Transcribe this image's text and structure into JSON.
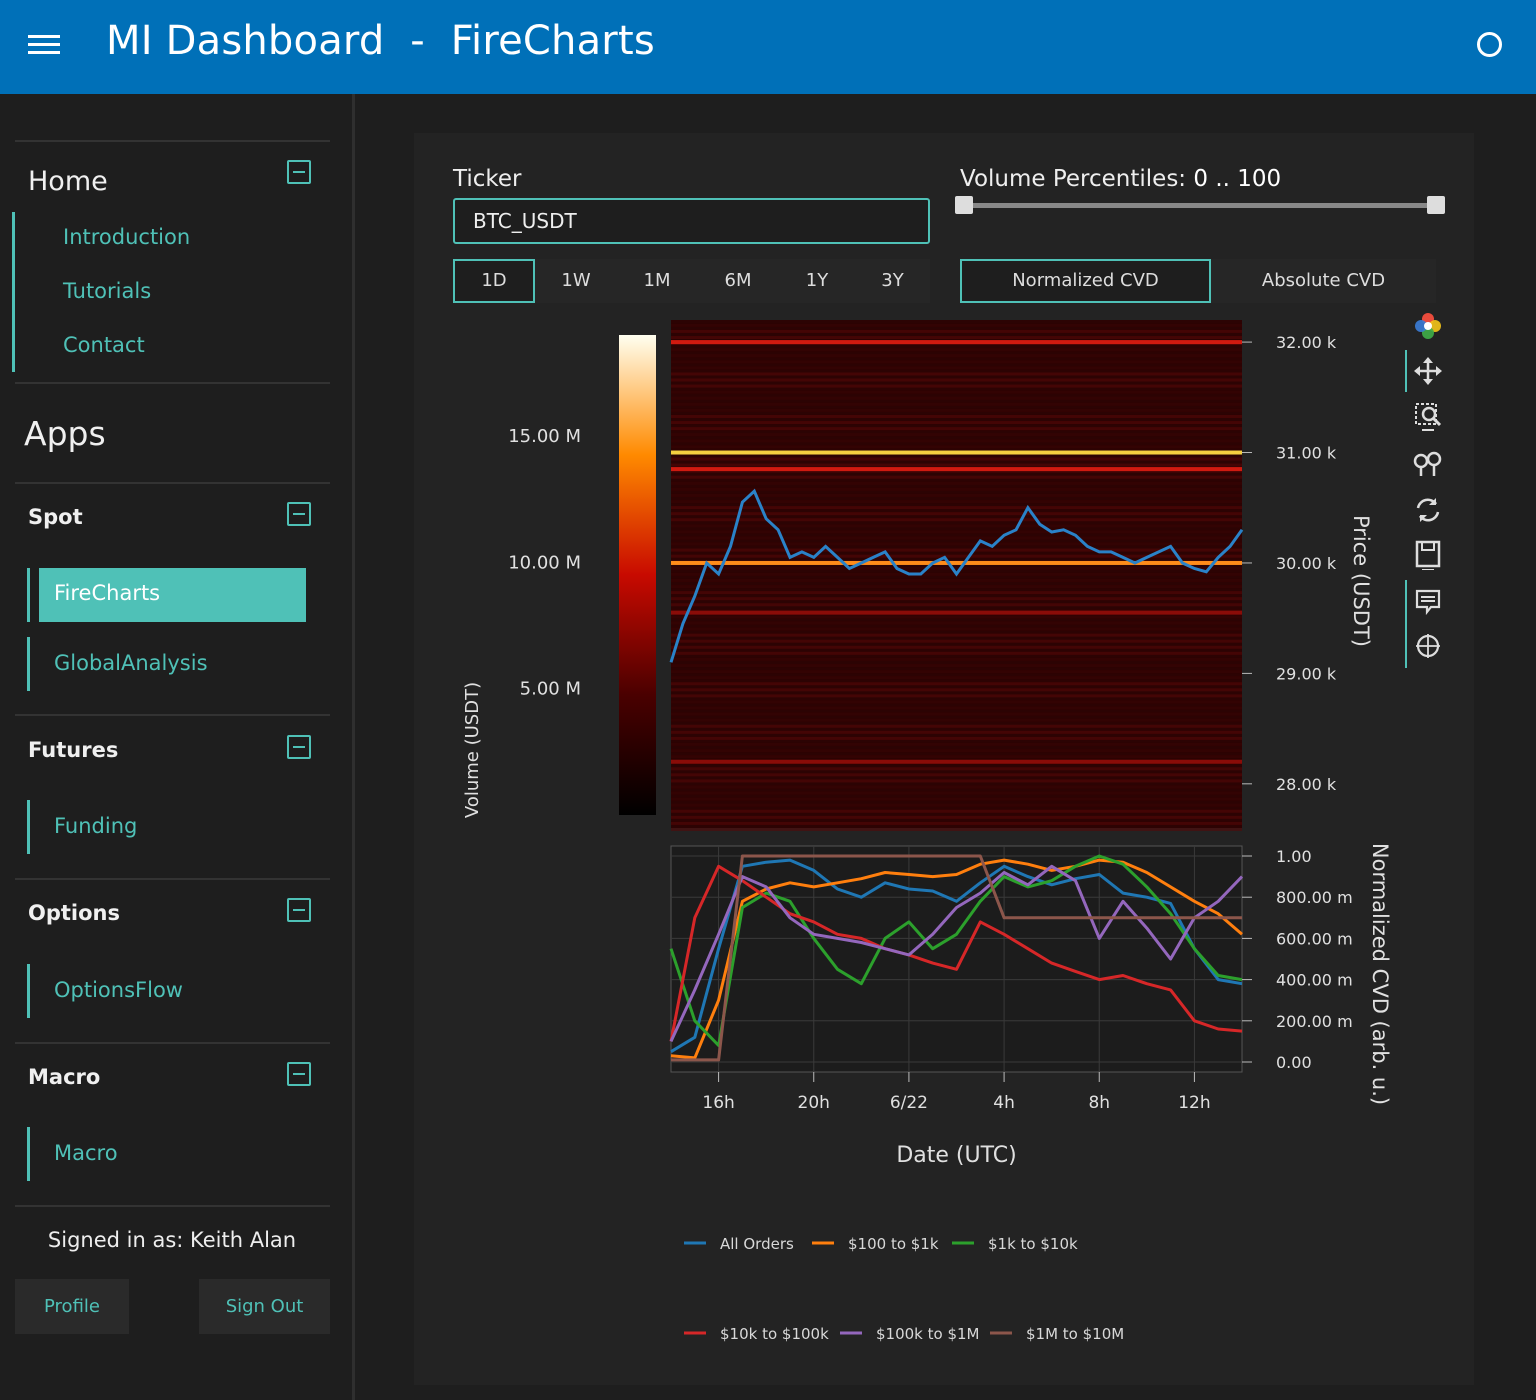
{
  "header": {
    "title": "MI Dashboard  -  FireCharts"
  },
  "sidebar": {
    "home": {
      "title": "Home",
      "items": [
        "Introduction",
        "Tutorials",
        "Contact"
      ]
    },
    "apps_title": "Apps",
    "sections": [
      {
        "title": "Spot",
        "items": [
          "FireCharts",
          "GlobalAnalysis"
        ],
        "active": "FireCharts"
      },
      {
        "title": "Futures",
        "items": [
          "Funding"
        ]
      },
      {
        "title": "Options",
        "items": [
          "OptionsFlow"
        ]
      },
      {
        "title": "Macro",
        "items": [
          "Macro"
        ]
      }
    ],
    "signed_in": "Signed in as: Keith Alan",
    "profile_label": "Profile",
    "signout_label": "Sign Out"
  },
  "controls": {
    "ticker_label": "Ticker",
    "ticker_value": "BTC_USDT",
    "volume_percentiles_label": "Volume Percentiles:",
    "volume_percentiles_value": "0 .. 100",
    "volume_percentiles_range": [
      0,
      100
    ],
    "timeframes": [
      "1D",
      "1W",
      "1M",
      "6M",
      "1Y",
      "3Y"
    ],
    "timeframe_active": "1D",
    "cvd_modes": [
      "Normalized CVD",
      "Absolute CVD"
    ],
    "cvd_mode_active": "Normalized CVD"
  },
  "modebar": {
    "icons": [
      "plotly-logo-icon",
      "pan-icon",
      "zoom-select-icon",
      "spike-lines-icon",
      "reset-axes-icon",
      "save-image-icon",
      "hover-compare-icon",
      "crosshair-icon"
    ]
  },
  "colors": {
    "accent": "#4fc1b7",
    "header": "#0070b8"
  },
  "chart_data": [
    {
      "type": "heatmap",
      "title": "",
      "ylabel": "Price (USDT)",
      "yticks": [
        "28.00 k",
        "29.00 k",
        "30.00 k",
        "31.00 k",
        "32.00 k"
      ],
      "ylim": [
        27600,
        32200
      ],
      "colorbar": {
        "label": "Volume (USDT)",
        "ticks": [
          "5.00 M",
          "10.00 M",
          "15.00 M"
        ],
        "range": [
          0,
          19000000
        ]
      },
      "heat_bands": [
        {
          "price": 31000,
          "volume": 15000000
        },
        {
          "price": 30000,
          "volume": 10000000
        },
        {
          "price": 32000,
          "volume": 6000000
        },
        {
          "price": 30850,
          "volume": 6500000
        },
        {
          "price": 29550,
          "volume": 4000000
        },
        {
          "price": 28200,
          "volume": 3500000
        }
      ],
      "price_series": {
        "x_hours": [
          0,
          0.5,
          1,
          1.5,
          2,
          2.5,
          3,
          3.5,
          4,
          4.5,
          5,
          5.5,
          6,
          6.5,
          7,
          7.5,
          8,
          8.5,
          9,
          9.5,
          10,
          10.5,
          11,
          11.5,
          12,
          12.5,
          13,
          13.5,
          14,
          14.5,
          15,
          15.5,
          16,
          16.5,
          17,
          17.5,
          18,
          18.5,
          19,
          19.5,
          20,
          20.5,
          21,
          21.5,
          22,
          22.5,
          23,
          23.5,
          24
        ],
        "y": [
          29100,
          29450,
          29700,
          30000,
          29900,
          30150,
          30550,
          30650,
          30400,
          30300,
          30050,
          30100,
          30050,
          30150,
          30050,
          29950,
          30000,
          30050,
          30100,
          29950,
          29900,
          29900,
          30000,
          30050,
          29900,
          30050,
          30200,
          30150,
          30250,
          30300,
          30500,
          30350,
          30280,
          30300,
          30250,
          30150,
          30100,
          30100,
          30050,
          30000,
          30050,
          30100,
          30150,
          30000,
          29950,
          29920,
          30050,
          30150,
          30300
        ]
      }
    },
    {
      "type": "line",
      "title": "",
      "xlabel": "Date (UTC)",
      "ylabel": "Normalized CVD (arb. u.)",
      "xticks": [
        "16h",
        "20h",
        "6/22",
        "4h",
        "8h",
        "12h"
      ],
      "yticks": [
        "0.00",
        "200.00 m",
        "400.00 m",
        "600.00 m",
        "800.00 m",
        "1.00"
      ],
      "ylim": [
        0,
        1
      ],
      "x_hours": [
        0,
        1,
        2,
        3,
        4,
        5,
        6,
        7,
        8,
        9,
        10,
        11,
        12,
        13,
        14,
        15,
        16,
        17,
        18,
        19,
        20,
        21,
        22,
        23,
        24
      ],
      "series": [
        {
          "name": "All Orders",
          "color": "#1f77b4",
          "values": [
            0.05,
            0.12,
            0.55,
            0.95,
            0.97,
            0.98,
            0.93,
            0.84,
            0.8,
            0.87,
            0.84,
            0.83,
            0.78,
            0.87,
            0.95,
            0.9,
            0.86,
            0.89,
            0.91,
            0.82,
            0.8,
            0.77,
            0.55,
            0.4,
            0.38
          ]
        },
        {
          "name": "$100 to $1k",
          "color": "#ff7f0e",
          "values": [
            0.03,
            0.02,
            0.3,
            0.78,
            0.84,
            0.87,
            0.85,
            0.87,
            0.89,
            0.92,
            0.91,
            0.9,
            0.91,
            0.96,
            0.98,
            0.96,
            0.93,
            0.95,
            0.98,
            0.97,
            0.92,
            0.85,
            0.78,
            0.72,
            0.62
          ]
        },
        {
          "name": "$1k to $10k",
          "color": "#2ca02c",
          "values": [
            0.55,
            0.2,
            0.08,
            0.75,
            0.82,
            0.78,
            0.6,
            0.45,
            0.38,
            0.6,
            0.68,
            0.55,
            0.62,
            0.78,
            0.9,
            0.85,
            0.88,
            0.95,
            1.0,
            0.96,
            0.85,
            0.72,
            0.55,
            0.42,
            0.4
          ]
        },
        {
          "name": "$10k to $100k",
          "color": "#d62728",
          "values": [
            0.1,
            0.7,
            0.95,
            0.88,
            0.8,
            0.72,
            0.68,
            0.62,
            0.6,
            0.55,
            0.52,
            0.48,
            0.45,
            0.68,
            0.62,
            0.55,
            0.48,
            0.44,
            0.4,
            0.42,
            0.38,
            0.35,
            0.2,
            0.16,
            0.15
          ]
        },
        {
          "name": "$100k to $1M",
          "color": "#9467bd",
          "values": [
            0.1,
            0.35,
            0.62,
            0.9,
            0.85,
            0.7,
            0.62,
            0.6,
            0.58,
            0.55,
            0.52,
            0.62,
            0.75,
            0.82,
            0.92,
            0.86,
            0.95,
            0.88,
            0.6,
            0.78,
            0.65,
            0.5,
            0.7,
            0.78,
            0.9
          ]
        },
        {
          "name": "$1M to $10M",
          "color": "#8c564b",
          "values": [
            0.01,
            0.01,
            0.01,
            1.0,
            1.0,
            1.0,
            1.0,
            1.0,
            1.0,
            1.0,
            1.0,
            1.0,
            1.0,
            1.0,
            0.7,
            0.7,
            0.7,
            0.7,
            0.7,
            0.7,
            0.7,
            0.7,
            0.7,
            0.7,
            0.7
          ]
        }
      ]
    }
  ]
}
